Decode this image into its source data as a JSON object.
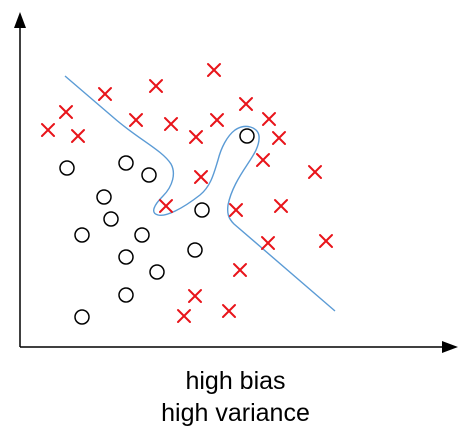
{
  "caption": {
    "line1": "high bias",
    "line2": "high variance"
  },
  "colors": {
    "axis": "#000000",
    "cross": "#e8141a",
    "circle_stroke": "#000000",
    "circle_fill": "#ffffff",
    "boundary": "#5b9bd5"
  },
  "icons": {
    "positive_class": "x-mark",
    "negative_class": "open-circle"
  }
}
